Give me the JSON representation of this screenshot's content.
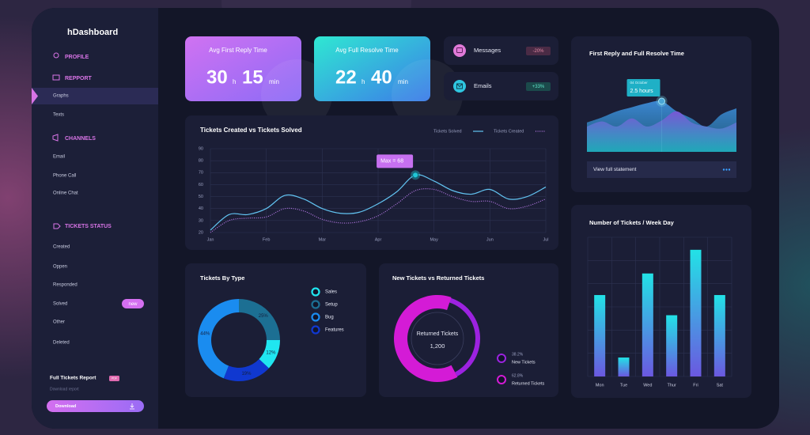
{
  "sidebar": {
    "brand": "hDashboard",
    "sections": [
      {
        "title": "PROFILE",
        "items": []
      },
      {
        "title": "REPPORT",
        "items": [
          "Graphs",
          "Texts"
        ]
      },
      {
        "title": "CHANNELS",
        "items": [
          "Email",
          "Phone Call",
          "Online Chat"
        ]
      },
      {
        "title": "TICKETS STATUS",
        "items": [
          "Created",
          "Oppen",
          "Responded",
          "Solved",
          "Other",
          "Deleted"
        ]
      }
    ],
    "badge": "new",
    "report": {
      "title": "Full Tickets Report",
      "tag": "PDF",
      "subtitle": "Download report",
      "button": "Download"
    }
  },
  "stats": [
    {
      "title": "Avg First Reply Time",
      "hours": 30,
      "hours_unit": "h",
      "minutes": 15,
      "minutes_unit": "min"
    },
    {
      "title": "Avg Full Resolve Time",
      "hours": 22,
      "hours_unit": "h",
      "minutes": 40,
      "minutes_unit": "min"
    }
  ],
  "channels": [
    {
      "name": "Messages",
      "change": "-20%"
    },
    {
      "name": "Emails",
      "change": "+33%"
    }
  ],
  "charts": [
    {
      "type": "line",
      "title": "Tickets Created vs Tickets Solved",
      "categories": [
        "Jan",
        null,
        null,
        "Feb",
        null,
        null,
        "Mar",
        null,
        null,
        "Apr",
        null,
        null,
        "May",
        null,
        null,
        "Jun",
        null,
        null,
        "Jul"
      ],
      "series": [
        {
          "name": "Tickets Solved",
          "color": "#62c4f2",
          "style": "solid",
          "values": [
            22,
            35,
            35,
            40,
            51,
            48,
            40,
            36,
            37,
            44,
            54,
            68,
            63,
            55,
            52,
            56,
            48,
            50,
            58
          ]
        },
        {
          "name": "Tickets Created",
          "color": "#b77ae8",
          "style": "dotted",
          "values": [
            20,
            30,
            32,
            33,
            40,
            38,
            31,
            28,
            29,
            34,
            44,
            55,
            56,
            50,
            46,
            46,
            40,
            42,
            48
          ]
        }
      ],
      "ylim": [
        20,
        90
      ],
      "yticks": [
        20,
        30,
        40,
        50,
        60,
        70,
        80,
        90
      ],
      "grid": true,
      "annotation": "Max = 68"
    },
    {
      "type": "area",
      "title": "First Reply and Full Resolve Time",
      "series": [
        {
          "color": "#3d8ad8",
          "values": [
            1.45,
            1.7,
            2.0,
            2.2,
            2.4,
            2.5,
            2.0,
            1.65,
            1.25,
            1.85,
            2.15
          ]
        },
        {
          "color": "#7b55d6",
          "values": [
            1.25,
            1.5,
            1.25,
            1.65,
            1.25,
            1.55,
            2.0,
            1.45,
            1.25,
            1.15,
            1.45
          ]
        }
      ],
      "ylim": [
        0,
        2.5
      ],
      "tooltip": {
        "date": "04 October",
        "value": 2.5,
        "label": "2.5 hours"
      },
      "link": "View full statement"
    },
    {
      "type": "donut",
      "title": "Tickets By Type",
      "categories": [
        "Sales",
        "Setup",
        "Bug",
        "Features"
      ],
      "values": [
        12,
        25,
        44,
        19
      ],
      "value_labels": [
        "12%",
        "25%",
        "44%",
        "19%"
      ],
      "colors": [
        "#20e6f0",
        "#1c6f93",
        "#1a8cf0",
        "#1038d0"
      ]
    },
    {
      "type": "ring",
      "title": "New Tickets vs Returned Tickets",
      "total": "1,200",
      "categories": [
        "New Tickets",
        "Returned Tickets"
      ],
      "values": [
        38.2,
        62.8
      ],
      "value_labels": [
        "38.2%",
        "62.8%"
      ],
      "colors": [
        "#9c22e0",
        "#d41bd6"
      ]
    },
    {
      "type": "bar",
      "title": "Number of Tickets / Week Day",
      "categories": [
        "Mon",
        "Tue",
        "Wed",
        "Thur",
        "Fri",
        "Sat"
      ],
      "values": [
        58.5,
        13.6,
        74,
        44,
        91,
        58.5
      ],
      "ylim": [
        0,
        100
      ],
      "colors": [
        "#22e2e6",
        "#6b58e0"
      ]
    }
  ]
}
